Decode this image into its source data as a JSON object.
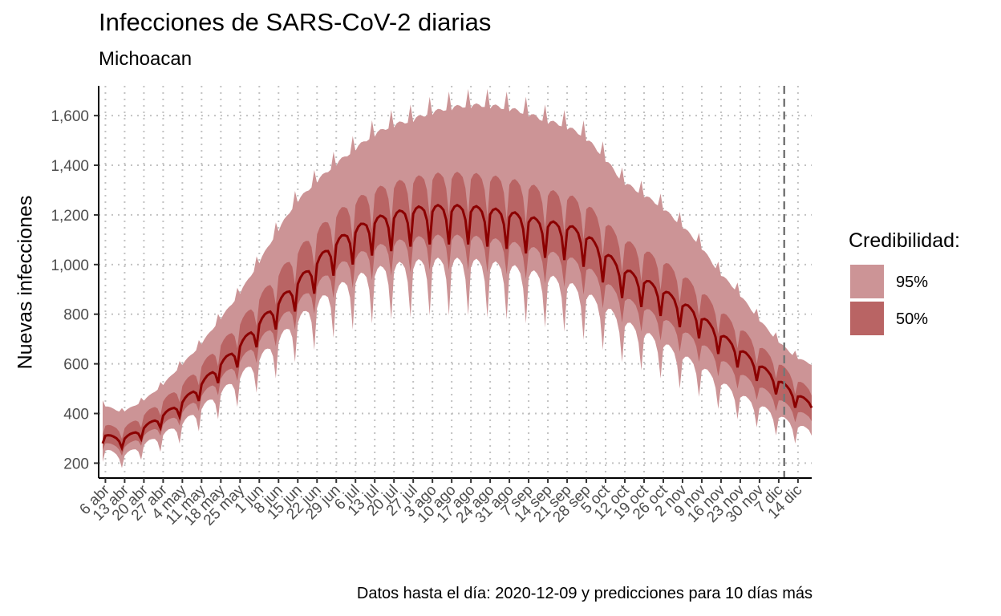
{
  "chart_data": {
    "type": "area",
    "title": "Infecciones de SARS-CoV-2 diarias",
    "subtitle": "Michoacan",
    "ylabel": "Nuevas infecciones",
    "xlabel": "",
    "caption": "Datos hasta el día: 2020-12-09 y predicciones para 10 días más",
    "ylim": [
      140,
      1720
    ],
    "yticks": [
      200,
      400,
      600,
      800,
      1000,
      1200,
      1400,
      1600
    ],
    "ytick_labels": [
      "200",
      "400",
      "600",
      "800",
      "1,000",
      "1,200",
      "1,400",
      "1,600"
    ],
    "x_start": "2020-04-05",
    "x_end": "2020-12-19",
    "data_cutoff": "2020-12-09",
    "xtick_dates": [
      "2020-04-06",
      "2020-04-13",
      "2020-04-20",
      "2020-04-27",
      "2020-05-04",
      "2020-05-11",
      "2020-05-18",
      "2020-05-25",
      "2020-06-01",
      "2020-06-08",
      "2020-06-15",
      "2020-06-22",
      "2020-06-29",
      "2020-07-06",
      "2020-07-13",
      "2020-07-20",
      "2020-07-27",
      "2020-08-03",
      "2020-08-10",
      "2020-08-17",
      "2020-08-24",
      "2020-08-31",
      "2020-09-07",
      "2020-09-14",
      "2020-09-21",
      "2020-09-28",
      "2020-10-05",
      "2020-10-12",
      "2020-10-19",
      "2020-10-26",
      "2020-11-02",
      "2020-11-09",
      "2020-11-16",
      "2020-11-23",
      "2020-11-30",
      "2020-12-07",
      "2020-12-14"
    ],
    "xtick_labels": [
      "6 abr",
      "13 abr",
      "20 abr",
      "27 abr",
      "4 may",
      "11 may",
      "18 may",
      "25 may",
      "1 jun",
      "8 jun",
      "15 jun",
      "22 jun",
      "29 jun",
      "6 jul",
      "13 jul",
      "20 jul",
      "27 jul",
      "3 ago",
      "10 ago",
      "17 ago",
      "24 ago",
      "31 ago",
      "7 sep",
      "14 sep",
      "21 sep",
      "28 sep",
      "5 oct",
      "12 oct",
      "19 oct",
      "26 oct",
      "2 nov",
      "9 nov",
      "16 nov",
      "23 nov",
      "30 nov",
      "7 dic",
      "14 dic"
    ],
    "weekly_dates": [
      "2020-04-05",
      "2020-04-12",
      "2020-04-19",
      "2020-04-26",
      "2020-05-03",
      "2020-05-10",
      "2020-05-17",
      "2020-05-24",
      "2020-05-31",
      "2020-06-07",
      "2020-06-14",
      "2020-06-21",
      "2020-06-28",
      "2020-07-05",
      "2020-07-12",
      "2020-07-19",
      "2020-07-26",
      "2020-08-02",
      "2020-08-09",
      "2020-08-16",
      "2020-08-23",
      "2020-08-30",
      "2020-09-06",
      "2020-09-13",
      "2020-09-20",
      "2020-09-27",
      "2020-10-04",
      "2020-10-11",
      "2020-10-18",
      "2020-10-25",
      "2020-11-01",
      "2020-11-08",
      "2020-11-15",
      "2020-11-22",
      "2020-11-29",
      "2020-12-06",
      "2020-12-13",
      "2020-12-19"
    ],
    "weekly_median": [
      310,
      290,
      330,
      380,
      430,
      500,
      580,
      650,
      740,
      820,
      900,
      980,
      1060,
      1110,
      1150,
      1170,
      1190,
      1200,
      1200,
      1200,
      1190,
      1180,
      1160,
      1140,
      1130,
      1100,
      1030,
      960,
      920,
      880,
      830,
      780,
      710,
      650,
      590,
      530,
      470,
      430
    ],
    "weekly_lower95": [
      250,
      220,
      260,
      300,
      340,
      400,
      460,
      520,
      590,
      660,
      740,
      800,
      860,
      900,
      930,
      950,
      960,
      970,
      970,
      970,
      960,
      950,
      930,
      910,
      890,
      850,
      800,
      740,
      700,
      660,
      610,
      570,
      510,
      460,
      420,
      380,
      340,
      320
    ],
    "weekly_upper95": [
      430,
      400,
      440,
      500,
      580,
      660,
      760,
      860,
      980,
      1110,
      1230,
      1310,
      1380,
      1440,
      1500,
      1540,
      1560,
      1590,
      1610,
      1620,
      1620,
      1610,
      1590,
      1560,
      1540,
      1500,
      1420,
      1320,
      1270,
      1220,
      1150,
      1070,
      960,
      880,
      780,
      690,
      620,
      590
    ],
    "weekly_lower50": [
      280,
      255,
      300,
      345,
      390,
      455,
      525,
      590,
      670,
      745,
      820,
      890,
      960,
      1005,
      1040,
      1060,
      1075,
      1085,
      1085,
      1085,
      1075,
      1065,
      1045,
      1025,
      1010,
      975,
      915,
      850,
      810,
      770,
      720,
      675,
      610,
      555,
      505,
      455,
      405,
      375
    ],
    "weekly_upper50": [
      350,
      330,
      380,
      435,
      495,
      570,
      655,
      735,
      835,
      930,
      1020,
      1100,
      1170,
      1220,
      1265,
      1290,
      1310,
      1325,
      1330,
      1330,
      1320,
      1310,
      1290,
      1265,
      1250,
      1220,
      1150,
      1075,
      1035,
      995,
      940,
      880,
      800,
      735,
      665,
      600,
      530,
      480
    ],
    "legend_title": "Credibilidad:",
    "legend_position": "right",
    "series": [
      {
        "name": "95%",
        "color": "#cc9496"
      },
      {
        "name": "50%",
        "color": "#b96464"
      }
    ],
    "median_color": "#8b0000",
    "grid": "dotted"
  }
}
